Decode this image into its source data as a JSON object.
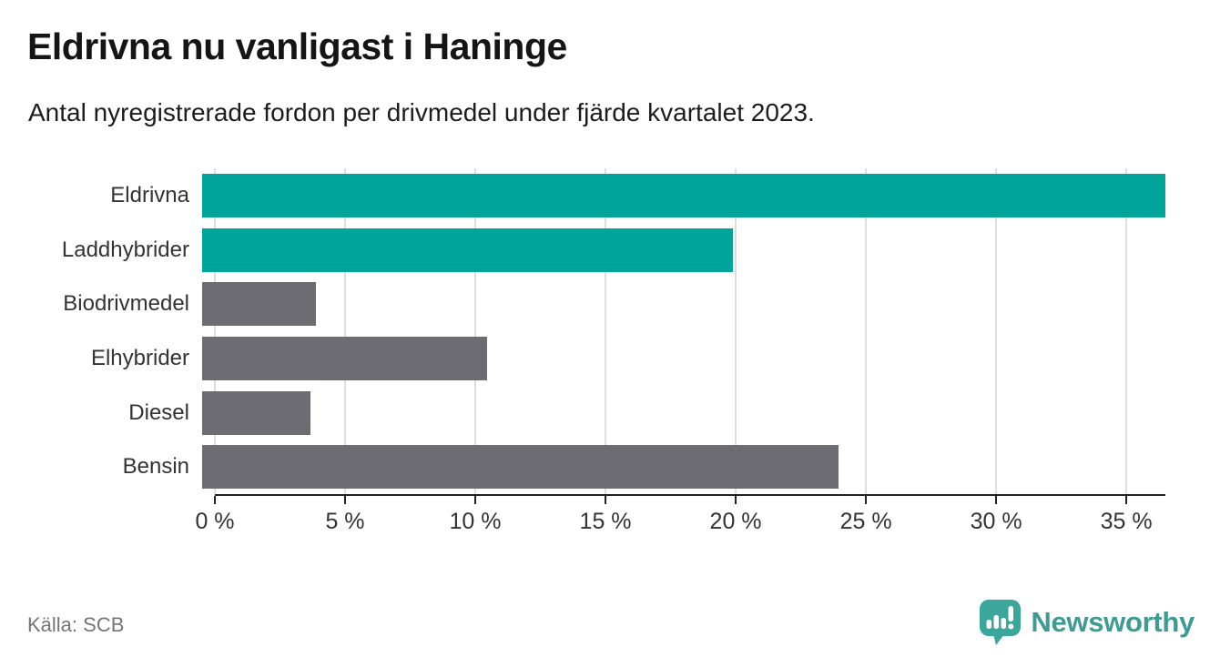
{
  "header": {
    "title": "Eldrivna nu vanligast i Haninge",
    "subtitle": "Antal nyregistrerade fordon per drivmedel under fjärde kvartalet 2023."
  },
  "footer": {
    "source": "Källa: SCB",
    "brand": "Newsworthy"
  },
  "colors": {
    "accent": "#00a49a",
    "muted": "#6c6c72",
    "axis": "#222222",
    "gridline": "#dedede",
    "brand": "#3e9b94",
    "brand_icon": "#3aa69c"
  },
  "chart_data": {
    "type": "bar",
    "orientation": "horizontal",
    "title": "Eldrivna nu vanligast i Haninge",
    "subtitle": "Antal nyregistrerade fordon per drivmedel under fjärde kvartalet 2023.",
    "categories": [
      "Eldrivna",
      "Laddhybrider",
      "Biodrivmedel",
      "Elhybrider",
      "Diesel",
      "Bensin"
    ],
    "values": [
      36.5,
      20.1,
      4.3,
      10.8,
      4.1,
      24.1
    ],
    "bar_colors": [
      "accent",
      "accent",
      "muted",
      "muted",
      "muted",
      "muted"
    ],
    "unit": "%",
    "x_ticks": [
      "0 %",
      "5 %",
      "10 %",
      "15 %",
      "20 %",
      "25 %",
      "30 %",
      "35 %"
    ],
    "x_tick_values": [
      0,
      5,
      10,
      15,
      20,
      25,
      30,
      35
    ],
    "xlim": [
      0,
      36.5
    ],
    "grid": "vertical",
    "legend": "none",
    "source": "Källa: SCB"
  }
}
